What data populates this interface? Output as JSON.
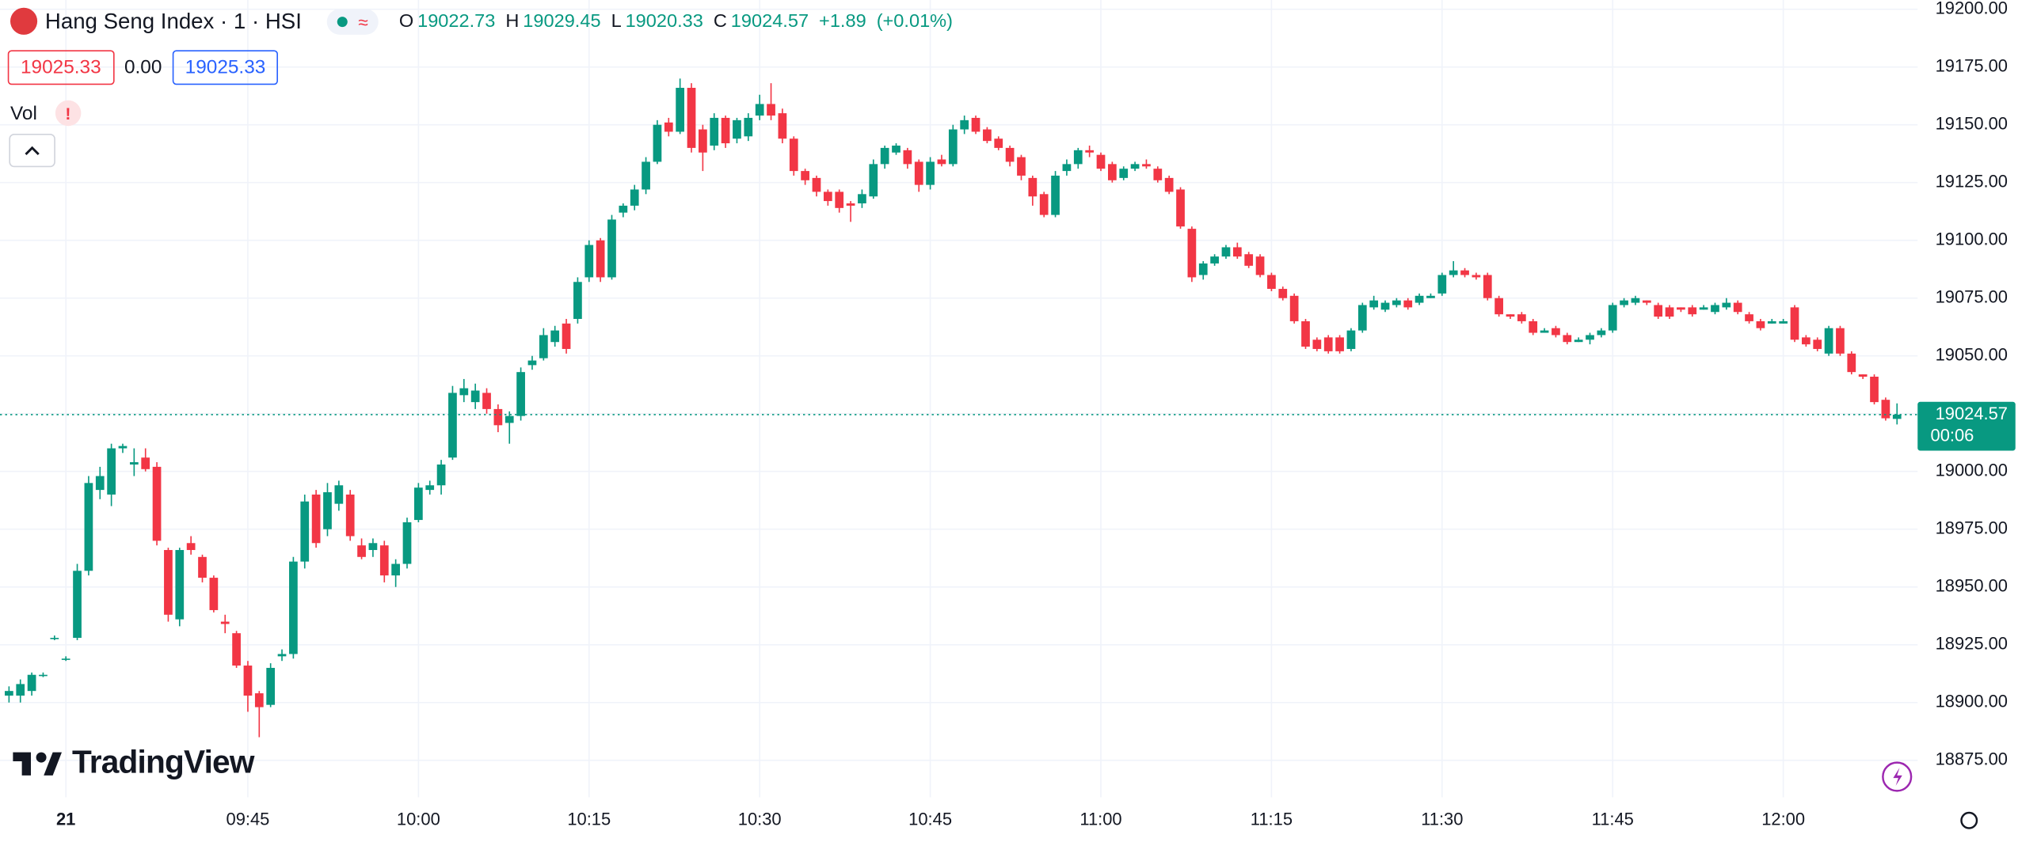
{
  "header": {
    "title": "Hang Seng Index · 1 · HSI",
    "ohlc": [
      {
        "label": "O",
        "value": "19022.73"
      },
      {
        "label": "H",
        "value": "19029.45"
      },
      {
        "label": "L",
        "value": "19020.33"
      },
      {
        "label": "C",
        "value": "19024.57"
      }
    ],
    "change": "+1.89",
    "change_pct": "(+0.01%)"
  },
  "trade": {
    "sell": "19025.33",
    "spread": "0.00",
    "buy": "19025.33"
  },
  "indicator": {
    "label": "Vol"
  },
  "branding": "TradingView",
  "chart_data": {
    "type": "candlestick",
    "up_color": "#089981",
    "down_color": "#f23645",
    "grid": true,
    "ylim": [
      18859,
      19204
    ],
    "yticks": [
      {
        "value": 19200,
        "label": "19200.00"
      },
      {
        "value": 19175,
        "label": "19175.00"
      },
      {
        "value": 19150,
        "label": "19150.00"
      },
      {
        "value": 19125,
        "label": "19125.00"
      },
      {
        "value": 19100,
        "label": "19100.00"
      },
      {
        "value": 19075,
        "label": "19075.00"
      },
      {
        "value": 19050,
        "label": "19050.00"
      },
      {
        "value": 19025,
        "label": "19025.00"
      },
      {
        "value": 19000,
        "label": "19000.00"
      },
      {
        "value": 18975,
        "label": "18975.00"
      },
      {
        "value": 18950,
        "label": "18950.00"
      },
      {
        "value": 18925,
        "label": "18925.00"
      },
      {
        "value": 18900,
        "label": "18900.00"
      },
      {
        "value": 18875,
        "label": "18875.00"
      }
    ],
    "last_price": 19024.57,
    "countdown": "00:06",
    "categories": [
      null,
      null,
      null,
      null,
      null,
      "21",
      null,
      null,
      null,
      null,
      null,
      null,
      null,
      null,
      null,
      null,
      null,
      null,
      null,
      null,
      null,
      "09:45",
      null,
      null,
      null,
      null,
      null,
      null,
      null,
      null,
      null,
      null,
      null,
      null,
      null,
      null,
      "10:00",
      null,
      null,
      null,
      null,
      null,
      null,
      null,
      null,
      null,
      null,
      null,
      null,
      null,
      null,
      "10:15",
      null,
      null,
      null,
      null,
      null,
      null,
      null,
      null,
      null,
      null,
      null,
      null,
      null,
      null,
      "10:30",
      null,
      null,
      null,
      null,
      null,
      null,
      null,
      null,
      null,
      null,
      null,
      null,
      null,
      null,
      "10:45",
      null,
      null,
      null,
      null,
      null,
      null,
      null,
      null,
      null,
      null,
      null,
      null,
      null,
      null,
      "11:00",
      null,
      null,
      null,
      null,
      null,
      null,
      null,
      null,
      null,
      null,
      null,
      null,
      null,
      null,
      "11:15",
      null,
      null,
      null,
      null,
      null,
      null,
      null,
      null,
      null,
      null,
      null,
      null,
      null,
      null,
      "11:30",
      null,
      null,
      null,
      null,
      null,
      null,
      null,
      null,
      null,
      null,
      null,
      null,
      null,
      null,
      "11:45",
      null,
      null,
      null,
      null,
      null,
      null,
      null,
      null,
      null,
      null,
      null,
      null,
      null,
      null,
      "12:00",
      null,
      null,
      null,
      null,
      null,
      null,
      null,
      null,
      null,
      null
    ],
    "open": [
      18903,
      18903,
      18905,
      18912,
      18928,
      18919,
      18928,
      18957,
      18992,
      18990,
      19010,
      19003,
      19006,
      19002,
      18966,
      18936,
      18969,
      18963,
      18954,
      18935,
      18930,
      18916,
      18904,
      18899,
      18920,
      18921,
      18961,
      18990,
      18975,
      18986,
      18990,
      18968,
      18966,
      18968,
      18955,
      18960,
      18979,
      18992,
      18994,
      19006,
      19033,
      19030,
      19034,
      19027,
      19021,
      19024,
      19046,
      19049,
      19056,
      19064,
      19066,
      19084,
      19100,
      19084,
      19112,
      19115,
      19122,
      19134,
      19151,
      19147,
      19166,
      19148,
      19141,
      19153,
      19144,
      19145,
      19154,
      19159,
      19155,
      19144,
      19130,
      19127,
      19121,
      19121,
      19116,
      19116,
      19119,
      19133,
      19138,
      19139,
      19134,
      19124,
      19135,
      19133,
      19148,
      19153,
      19148,
      19144,
      19140,
      19136,
      19127,
      19120,
      19111,
      19130,
      19133,
      19139,
      19137,
      19133,
      19127,
      19131,
      19133,
      19131,
      19127,
      19122,
      19105,
      19085,
      19090,
      19093,
      19097,
      19094,
      19093,
      19085,
      19079,
      19076,
      19065,
      19057,
      19058,
      19058,
      19053,
      19061,
      19071,
      19070,
      19072,
      19074,
      19073,
      19075,
      19077,
      19085,
      19087,
      19085,
      19085,
      19075,
      19068,
      19068,
      19065,
      19060,
      19062,
      19059,
      19056,
      19057,
      19059,
      19061,
      19072,
      19073,
      19074,
      19072,
      19071,
      19071,
      19071,
      19070,
      19069,
      19071,
      19073,
      19068,
      19065,
      19064,
      19064,
      19071,
      19058,
      19057,
      19051,
      19062,
      19051,
      19042,
      19041,
      19031,
      19022.73
    ],
    "high": [
      18907,
      18910,
      18913,
      18913,
      18929,
      18920,
      18960,
      18998,
      19002,
      19012,
      19012,
      19010,
      19010,
      19004,
      18967,
      18967,
      18972,
      18964,
      18955,
      18938,
      18931,
      18918,
      18905,
      18917,
      18923,
      18963,
      18990,
      18992,
      18995,
      18996,
      18992,
      18971,
      18971,
      18970,
      18962,
      18980,
      18995,
      18996,
      19005,
      19037,
      19040,
      19038,
      19036,
      19029,
      19026,
      19045,
      19050,
      19062,
      19063,
      19066,
      19084,
      19100,
      19101,
      19111,
      19116,
      19124,
      19136,
      19152,
      19153,
      19170,
      19168,
      19150,
      19155,
      19154,
      19153,
      19155,
      19163,
      19168,
      19157,
      19145,
      19131,
      19128,
      19122,
      19122,
      19117,
      19122,
      19135,
      19141,
      19142,
      19140,
      19135,
      19136,
      19137,
      19150,
      19154,
      19154,
      19149,
      19145,
      19141,
      19137,
      19128,
      19121,
      19130,
      19135,
      19140,
      19141,
      19138,
      19134,
      19132,
      19134,
      19135,
      19132,
      19128,
      19123,
      19106,
      19091,
      19094,
      19098,
      19099,
      19095,
      19094,
      19086,
      19080,
      19077,
      19066,
      19058,
      19059,
      19059,
      19062,
      19073,
      19076,
      19074,
      19075,
      19075,
      19077,
      19077,
      19086,
      19091,
      19088,
      19086,
      19086,
      19076,
      19068,
      19069,
      19066,
      19062,
      19063,
      19060,
      19058,
      19060,
      19062,
      19073,
      19075,
      19076,
      19074,
      19073,
      19072,
      19071,
      19072,
      19072,
      19073,
      19075,
      19074,
      19069,
      19066,
      19066,
      19066,
      19072,
      19059,
      19058,
      19063,
      19063,
      19052,
      19042,
      19042,
      19032,
      19029.45
    ],
    "low": [
      18900,
      18900,
      18903,
      18911,
      18927,
      18918,
      18927,
      18955,
      18988,
      18985,
      19008,
      18998,
      19000,
      18968,
      18935,
      18933,
      18964,
      18952,
      18939,
      18930,
      18915,
      18896,
      18885,
      18898,
      18918,
      18919,
      18958,
      18967,
      18972,
      18983,
      18970,
      18962,
      18963,
      18952,
      18950,
      18958,
      18978,
      18990,
      18990,
      19005,
      19030,
      19027,
      19025,
      19017,
      19012,
      19022,
      19044,
      19048,
      19054,
      19051,
      19064,
      19082,
      19082,
      19083,
      19110,
      19113,
      19120,
      19133,
      19145,
      19146,
      19138,
      19130,
      19139,
      19140,
      19142,
      19143,
      19152,
      19152,
      19142,
      19128,
      19124,
      19119,
      19115,
      19112,
      19108,
      19114,
      19118,
      19131,
      19137,
      19131,
      19121,
      19122,
      19132,
      19132,
      19146,
      19146,
      19142,
      19139,
      19132,
      19126,
      19115,
      19110,
      19110,
      19128,
      19131,
      19136,
      19130,
      19125,
      19126,
      19130,
      19131,
      19125,
      19120,
      19105,
      19082,
      19083,
      19089,
      19092,
      19092,
      19088,
      19084,
      19078,
      19074,
      19064,
      19053,
      19052,
      19051,
      19051,
      19052,
      19060,
      19070,
      19069,
      19071,
      19070,
      19072,
      19075,
      19076,
      19084,
      19084,
      19083,
      19074,
      19067,
      19066,
      19064,
      19059,
      19060,
      19058,
      19055,
      19056,
      19055,
      19058,
      19060,
      19071,
      19072,
      19072,
      19066,
      19066,
      19069,
      19067,
      19070,
      19068,
      19070,
      19068,
      19064,
      19061,
      19064,
      19064,
      19056,
      19054,
      19052,
      19050,
      19050,
      19042,
      19040,
      19029,
      19022,
      19020.33
    ],
    "close": [
      18905,
      18908,
      18912,
      18912,
      18928,
      18919,
      18957,
      18995,
      18998,
      19010,
      19011,
      19004,
      19001,
      18970,
      18938,
      18966,
      18966,
      18954,
      18940,
      18934,
      18916,
      18903,
      18898,
      18915,
      18921,
      18961,
      18987,
      18969,
      18991,
      18994,
      18972,
      18963,
      18969,
      18955,
      18960,
      18978,
      18993,
      18994,
      19003,
      19034,
      19036,
      19035,
      19027,
      19020,
      19024,
      19043,
      19048,
      19059,
      19061,
      19053,
      19082,
      19098,
      19084,
      19109,
      19115,
      19122,
      19134,
      19150,
      19147,
      19166,
      19140,
      19138,
      19153,
      19142,
      19152,
      19153,
      19159,
      19154,
      19144,
      19130,
      19126,
      19121,
      19117,
      19114,
      19115,
      19120,
      19133,
      19140,
      19141,
      19133,
      19124,
      19134,
      19133,
      19148,
      19152,
      19147,
      19143,
      19140,
      19134,
      19128,
      19119,
      19111,
      19128,
      19133,
      19139,
      19138,
      19131,
      19126,
      19131,
      19133,
      19132,
      19126,
      19121,
      19106,
      19084,
      19090,
      19093,
      19097,
      19093,
      19089,
      19085,
      19079,
      19075,
      19065,
      19054,
      19053,
      19052,
      19052,
      19061,
      19072,
      19074,
      19073,
      19074,
      19071,
      19076,
      19076,
      19085,
      19087,
      19085,
      19084,
      19075,
      19068,
      19067,
      19065,
      19060,
      19061,
      19059,
      19056,
      19057,
      19059,
      19061,
      19072,
      19074,
      19075,
      19073,
      19067,
      19067,
      19070,
      19068,
      19071,
      19072,
      19073,
      19069,
      19065,
      19062,
      19065,
      19065,
      19057,
      19055,
      19053,
      19062,
      19051,
      19043,
      19041,
      19030,
      19023,
      19024.57
    ]
  }
}
